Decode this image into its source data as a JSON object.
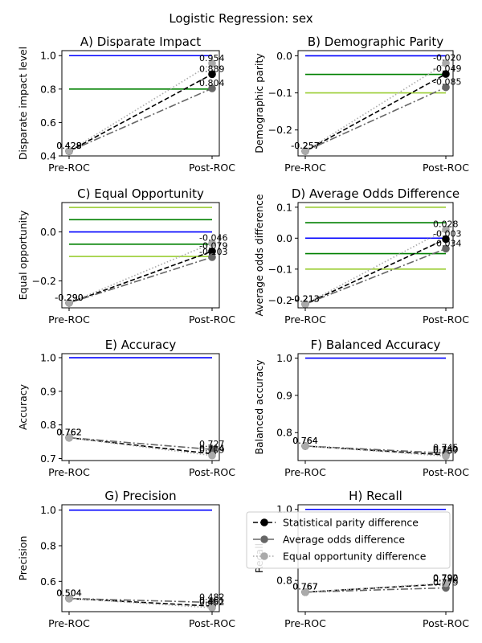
{
  "figure": {
    "title": "Logistic Regression: sex"
  },
  "legend": {
    "placement": "bottom-left of panel H",
    "entries": [
      {
        "label": "Statistical parity difference",
        "color": "#000000",
        "dash": "6,3",
        "marker": "#000000"
      },
      {
        "label": "Average odds difference",
        "color": "#666666",
        "dash": "9,3,2,3",
        "marker": "#666666"
      },
      {
        "label": "Equal opportunity difference",
        "color": "#aaaaaa",
        "dash": "1.5,2.5",
        "marker": "#aaaaaa"
      }
    ]
  },
  "chart_data": [
    {
      "type": "line",
      "title": "A) Disparate Impact",
      "ylabel": "Disparate impact level",
      "categories": [
        "Pre-ROC",
        "Post-ROC"
      ],
      "ylim": [
        0.4,
        1.03
      ],
      "yticks": [
        0.4,
        0.6,
        0.8,
        1.0
      ],
      "ytick_labels": [
        "0.4",
        "0.6",
        "0.8",
        "1.0"
      ],
      "reference_lines": [
        {
          "y": 1.0,
          "color": "#0000ff"
        },
        {
          "y": 0.8,
          "color": "#008000"
        }
      ],
      "series": [
        {
          "values": [
            0.428,
            0.889
          ],
          "labels": [
            "0.428",
            "0.889"
          ],
          "label_side": [
            "left",
            "right"
          ]
        },
        {
          "values": [
            0.428,
            0.804
          ],
          "labels": [
            "0.428",
            "0.804"
          ],
          "label_side": [
            "left",
            "right"
          ]
        },
        {
          "values": [
            0.429,
            0.954
          ],
          "labels": [
            "0.429",
            "0.954"
          ],
          "label_side": [
            "left",
            "right"
          ]
        }
      ]
    },
    {
      "type": "line",
      "title": "B) Demographic Parity",
      "ylabel": "Demographic parity",
      "categories": [
        "Pre-ROC",
        "Post-ROC"
      ],
      "ylim": [
        -0.27,
        0.014
      ],
      "yticks": [
        0.0,
        -0.1,
        -0.2
      ],
      "ytick_labels": [
        "0.0",
        "−0.1",
        "−0.2"
      ],
      "reference_lines": [
        {
          "y": 0.0,
          "color": "#0000ff"
        },
        {
          "y": -0.05,
          "color": "#008000"
        },
        {
          "y": -0.1,
          "color": "#9acd32"
        }
      ],
      "series": [
        {
          "values": [
            -0.257,
            -0.049
          ],
          "labels": [
            "-0.257",
            "-0.049"
          ],
          "label_side": [
            "left",
            "right"
          ]
        },
        {
          "values": [
            -0.257,
            -0.085
          ],
          "labels": [
            "-0.257",
            "-0.085"
          ],
          "label_side": [
            "left",
            "right"
          ]
        },
        {
          "values": [
            -0.257,
            -0.02
          ],
          "labels": [
            "-0.257",
            "-0.020"
          ],
          "label_side": [
            "left",
            "right"
          ]
        }
      ]
    },
    {
      "type": "line",
      "title": "C) Equal Opportunity",
      "ylabel": "Equal opportunity",
      "categories": [
        "Pre-ROC",
        "Post-ROC"
      ],
      "ylim": [
        -0.31,
        0.12
      ],
      "yticks": [
        0.0,
        -0.2
      ],
      "ytick_labels": [
        "0.0",
        "−0.2"
      ],
      "reference_lines": [
        {
          "y": 0.1,
          "color": "#9acd32"
        },
        {
          "y": 0.05,
          "color": "#008000"
        },
        {
          "y": 0.0,
          "color": "#0000ff"
        },
        {
          "y": -0.05,
          "color": "#008000"
        },
        {
          "y": -0.1,
          "color": "#9acd32"
        }
      ],
      "series": [
        {
          "values": [
            -0.29,
            -0.079
          ],
          "labels": [
            "-0.290",
            "-0.079"
          ],
          "label_side": [
            "left",
            "right"
          ]
        },
        {
          "values": [
            -0.29,
            -0.103
          ],
          "labels": [
            "-0.290",
            "-0.103"
          ],
          "label_side": [
            "left",
            "right"
          ]
        },
        {
          "values": [
            -0.29,
            -0.046
          ],
          "labels": [
            "-0.290",
            "-0.046"
          ],
          "label_side": [
            "left",
            "right"
          ]
        }
      ]
    },
    {
      "type": "line",
      "title": "D) Average Odds Difference",
      "ylabel": "Average odds difference",
      "categories": [
        "Pre-ROC",
        "Post-ROC"
      ],
      "ylim": [
        -0.225,
        0.115
      ],
      "yticks": [
        0.1,
        0.0,
        -0.1,
        -0.2
      ],
      "ytick_labels": [
        "0.1",
        "0.0",
        "−0.1",
        "−0.2"
      ],
      "reference_lines": [
        {
          "y": 0.1,
          "color": "#9acd32"
        },
        {
          "y": 0.05,
          "color": "#008000"
        },
        {
          "y": 0.0,
          "color": "#0000ff"
        },
        {
          "y": -0.05,
          "color": "#008000"
        },
        {
          "y": -0.1,
          "color": "#9acd32"
        }
      ],
      "series": [
        {
          "values": [
            -0.213,
            -0.003
          ],
          "labels": [
            "-0.213",
            "-0.003"
          ],
          "label_side": [
            "left",
            "right"
          ]
        },
        {
          "values": [
            -0.213,
            -0.034
          ],
          "labels": [
            "-0.213",
            "-0.034"
          ],
          "label_side": [
            "left",
            "right"
          ]
        },
        {
          "values": [
            -0.213,
            0.028
          ],
          "labels": [
            "-0.213",
            "0.028"
          ],
          "label_side": [
            "left",
            "right"
          ]
        }
      ]
    },
    {
      "type": "line",
      "title": "E) Accuracy",
      "ylabel": "Accuracy",
      "categories": [
        "Pre-ROC",
        "Post-ROC"
      ],
      "ylim": [
        0.694,
        1.012
      ],
      "yticks": [
        0.7,
        0.8,
        0.9,
        1.0
      ],
      "ytick_labels": [
        "0.7",
        "0.8",
        "0.9",
        "1.0"
      ],
      "reference_lines": [
        {
          "y": 1.0,
          "color": "#0000ff"
        }
      ],
      "series": [
        {
          "values": [
            0.762,
            0.714
          ],
          "labels": [
            "0.762",
            "0.714"
          ],
          "label_side": [
            "left",
            "right"
          ]
        },
        {
          "values": [
            0.762,
            0.727
          ],
          "labels": [
            "0.762",
            "0.727"
          ],
          "label_side": [
            "left",
            "right"
          ]
        },
        {
          "values": [
            0.762,
            0.709
          ],
          "labels": [
            "0.762",
            "0.709"
          ],
          "label_side": [
            "left",
            "right"
          ]
        }
      ]
    },
    {
      "type": "line",
      "title": "F) Balanced Accuracy",
      "ylabel": "Balanced accuracy",
      "categories": [
        "Pre-ROC",
        "Post-ROC"
      ],
      "ylim": [
        0.725,
        1.012
      ],
      "yticks": [
        0.8,
        0.9,
        1.0
      ],
      "ytick_labels": [
        "0.8",
        "0.9",
        "1.0"
      ],
      "reference_lines": [
        {
          "y": 1.0,
          "color": "#0000ff"
        }
      ],
      "series": [
        {
          "values": [
            0.764,
            0.74
          ],
          "labels": [
            "0.764",
            "0.740"
          ],
          "label_side": [
            "left",
            "right"
          ]
        },
        {
          "values": [
            0.764,
            0.745
          ],
          "labels": [
            "0.764",
            "0.745"
          ],
          "label_side": [
            "left",
            "right"
          ]
        },
        {
          "values": [
            0.764,
            0.737
          ],
          "labels": [
            "0.764",
            "0.737"
          ],
          "label_side": [
            "left",
            "right"
          ]
        }
      ]
    },
    {
      "type": "line",
      "title": "G) Precision",
      "ylabel": "Precision",
      "categories": [
        "Pre-ROC",
        "Post-ROC"
      ],
      "ylim": [
        0.43,
        1.03
      ],
      "yticks": [
        0.6,
        0.8,
        1.0
      ],
      "ytick_labels": [
        "0.6",
        "0.8",
        "1.0"
      ],
      "reference_lines": [
        {
          "y": 1.0,
          "color": "#0000ff"
        }
      ],
      "series": [
        {
          "values": [
            0.504,
            0.461
          ],
          "labels": [
            "0.504",
            "0.461"
          ],
          "label_side": [
            "left",
            "right"
          ]
        },
        {
          "values": [
            0.504,
            0.482
          ],
          "labels": [
            "0.504",
            "0.482"
          ],
          "label_side": [
            "left",
            "right"
          ]
        },
        {
          "values": [
            0.504,
            0.452
          ],
          "labels": [
            "0.504",
            "0.452"
          ],
          "label_side": [
            "left",
            "right"
          ]
        }
      ]
    },
    {
      "type": "line",
      "title": "H) Recall",
      "ylabel": "Recall",
      "categories": [
        "Pre-ROC",
        "Post-ROC"
      ],
      "ylim": [
        0.712,
        1.013
      ],
      "yticks": [
        0.8,
        1.0
      ],
      "ytick_labels": [
        "0.8",
        "1.0"
      ],
      "reference_lines": [
        {
          "y": 1.0,
          "color": "#0000ff"
        }
      ],
      "series": [
        {
          "values": [
            0.767,
            0.79
          ],
          "labels": [
            "0.767",
            "0.790"
          ],
          "label_side": [
            "left",
            "right"
          ]
        },
        {
          "values": [
            0.767,
            0.779
          ],
          "labels": [
            "0.767",
            "0.779"
          ],
          "label_side": [
            "left",
            "right"
          ]
        },
        {
          "values": [
            0.767,
            0.792
          ],
          "labels": [
            "0.767",
            "0.792"
          ],
          "label_side": [
            "left",
            "right"
          ]
        }
      ]
    }
  ]
}
